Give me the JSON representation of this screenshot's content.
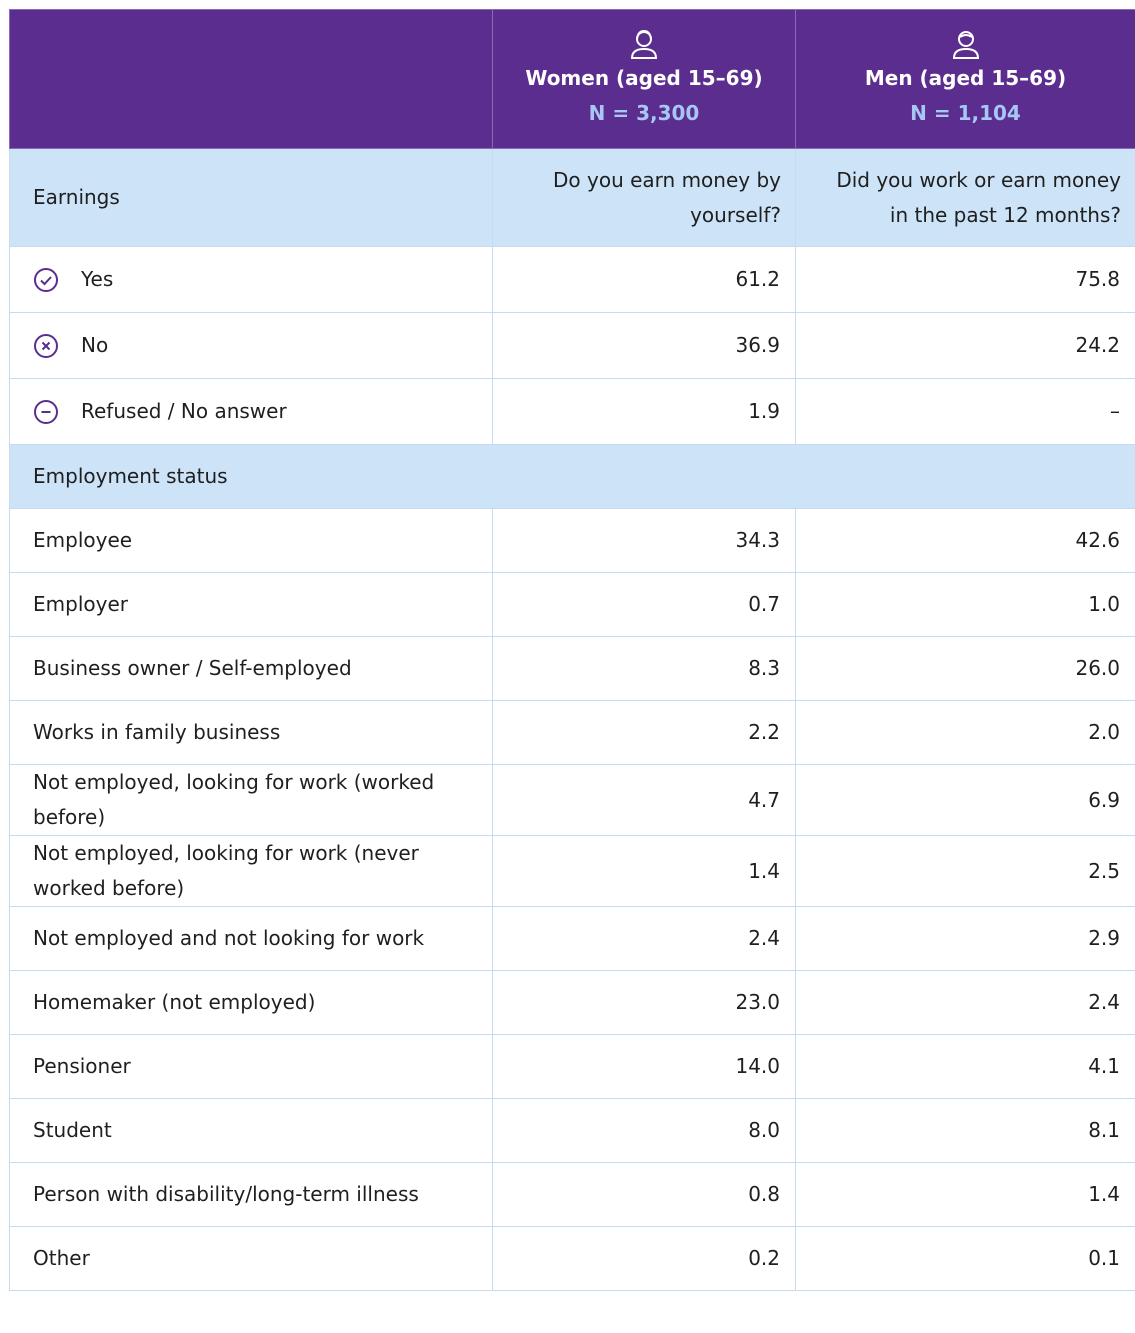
{
  "header": {
    "columns": [
      {
        "label": "Women (aged 15–69)",
        "n": "N = 3,300"
      },
      {
        "label": "Men (aged 15–69)",
        "n": "N = 1,104"
      }
    ]
  },
  "sections": [
    {
      "title": "Earnings",
      "questions": [
        "Do you earn money by yourself?",
        "Did you work or earn money in the past 12 months?"
      ],
      "rows": [
        {
          "label": "Yes",
          "values": [
            "61.2",
            "75.8"
          ]
        },
        {
          "label": "No",
          "values": [
            "36.9",
            "24.2"
          ]
        },
        {
          "label": "Refused / No answer",
          "values": [
            "1.9",
            "–"
          ]
        }
      ]
    },
    {
      "title": "Employment status",
      "rows": [
        {
          "label": "Employee",
          "values": [
            "34.3",
            "42.6"
          ]
        },
        {
          "label": "Employer",
          "values": [
            "0.7",
            "1.0"
          ]
        },
        {
          "label": "Business owner / Self-employed",
          "values": [
            "8.3",
            "26.0"
          ]
        },
        {
          "label": "Works in family business",
          "values": [
            "2.2",
            "2.0"
          ]
        },
        {
          "label": "Not employed, looking for work (worked before)",
          "values": [
            "4.7",
            "6.9"
          ]
        },
        {
          "label": "Not employed, looking for work (never worked before)",
          "values": [
            "1.4",
            "2.5"
          ]
        },
        {
          "label": "Not employed and not looking for work",
          "values": [
            "2.4",
            "2.9"
          ]
        },
        {
          "label": "Homemaker (not employed)",
          "values": [
            "23.0",
            "2.4"
          ]
        },
        {
          "label": "Pensioner",
          "values": [
            "14.0",
            "4.1"
          ]
        },
        {
          "label": "Student",
          "values": [
            "8.0",
            "8.1"
          ]
        },
        {
          "label": "Person with disability/long-term illness",
          "values": [
            "0.8",
            "1.4"
          ]
        },
        {
          "label": "Other",
          "values": [
            "0.2",
            "0.1"
          ]
        }
      ]
    }
  ]
}
